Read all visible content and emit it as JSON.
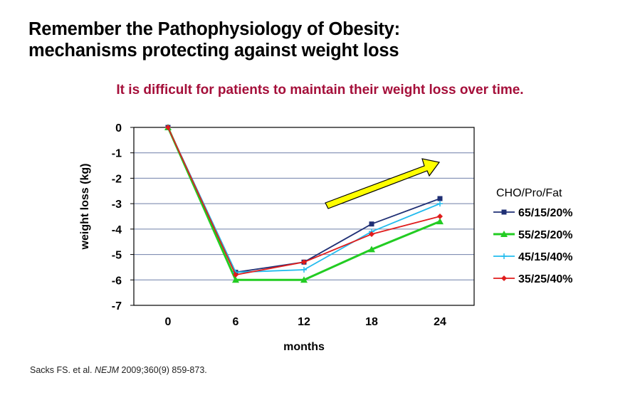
{
  "title": {
    "line1": "Remember the Pathophysiology of Obesity:",
    "line2": "mechanisms protecting against weight loss"
  },
  "subtitle": "It is difficult for patients to maintain their weight loss over time.",
  "citation": {
    "authors": "Sacks FS. et al.",
    "journal": "NEJM",
    "details": "2009;360(9) 859-873."
  },
  "colors": {
    "title": "#000000",
    "subtitle": "#a50f3a",
    "arrow_fill": "#ffff00",
    "gridline": "#6f7fa8"
  },
  "chart_data": {
    "type": "line",
    "x": [
      0,
      6,
      12,
      18,
      24
    ],
    "xlabel": "months",
    "ylabel": "weight loss (kg)",
    "ylim": [
      -7,
      0
    ],
    "yticks": [
      0,
      -1,
      -2,
      -3,
      -4,
      -5,
      -6,
      -7
    ],
    "grid": true,
    "legend_title": "CHO/Pro/Fat",
    "legend_position": "right",
    "series": [
      {
        "name": "65/15/20%",
        "color": "#1f2f74",
        "marker": "square",
        "values": [
          0,
          -5.7,
          -5.3,
          -3.8,
          -2.8
        ]
      },
      {
        "name": "55/25/20%",
        "color": "#22cc22",
        "marker": "triangle",
        "values": [
          0,
          -6.0,
          -6.0,
          -4.8,
          -3.7
        ]
      },
      {
        "name": "45/15/40%",
        "color": "#22bbee",
        "marker": "cross",
        "values": [
          0,
          -5.7,
          -5.6,
          -4.1,
          -3.0
        ]
      },
      {
        "name": "35/25/40%",
        "color": "#e01c1c",
        "marker": "diamond",
        "values": [
          0,
          -5.8,
          -5.3,
          -4.2,
          -3.5
        ]
      }
    ],
    "annotations": [
      {
        "type": "arrow",
        "direction": "up-right",
        "meaning": "upward trend (weight regain)"
      }
    ]
  }
}
